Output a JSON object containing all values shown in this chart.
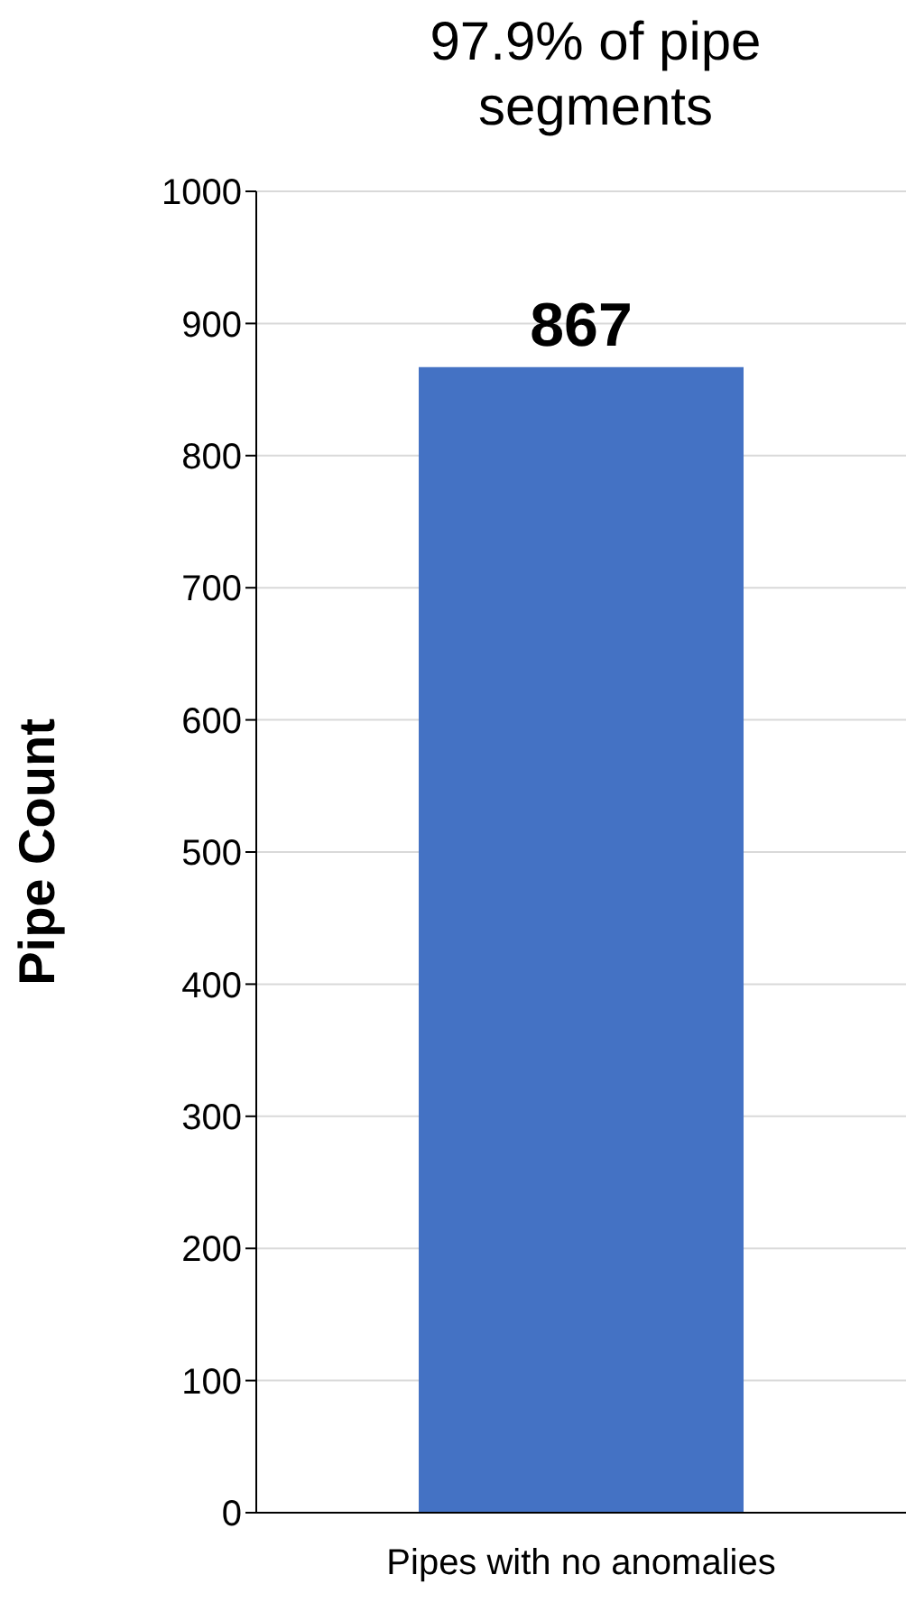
{
  "chart_data": {
    "type": "bar",
    "title": "97.9% of pipe segments",
    "ylabel": "Pipe Count",
    "categories": [
      "Pipes with no anomalies"
    ],
    "values": [
      867
    ],
    "color": "#4472c4",
    "ylim": [
      0,
      1000
    ],
    "yticks": [
      0,
      100,
      200,
      300,
      400,
      500,
      600,
      700,
      800,
      900,
      1000
    ],
    "grid": "y",
    "data_labels": true
  }
}
